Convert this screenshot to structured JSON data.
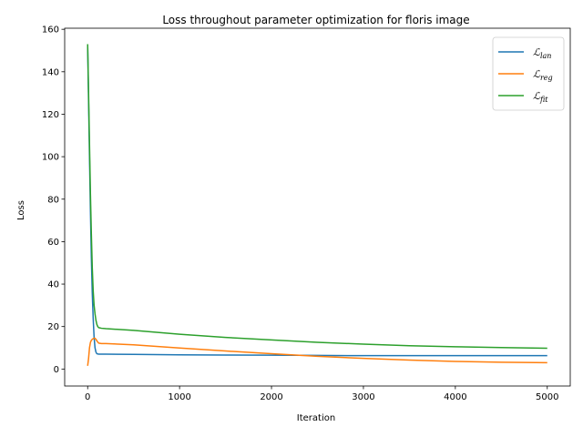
{
  "chart_data": {
    "type": "line",
    "title": "Loss throughout parameter optimization for floris image",
    "xlabel": "Iteration",
    "ylabel": "Loss",
    "xlim": [
      -250,
      5250
    ],
    "ylim": [
      -8,
      160.5
    ],
    "xticks": [
      0,
      1000,
      2000,
      3000,
      4000,
      5000
    ],
    "yticks": [
      0,
      20,
      40,
      60,
      80,
      100,
      120,
      140,
      160
    ],
    "grid": false,
    "legend_position": "top-right",
    "series": [
      {
        "name": "lan",
        "symbol": "ℒ",
        "color": "#1f77b4",
        "x": [
          0,
          10,
          20,
          30,
          40,
          50,
          60,
          70,
          80,
          90,
          100,
          120,
          150,
          200,
          500,
          1000,
          1500,
          2000,
          2500,
          3000,
          3500,
          4000,
          4500,
          5000
        ],
        "y": [
          152,
          126,
          100,
          75,
          53,
          36,
          24,
          15,
          10,
          8,
          7.2,
          7.0,
          7.0,
          7.0,
          6.9,
          6.7,
          6.6,
          6.5,
          6.4,
          6.3,
          6.3,
          6.3,
          6.3,
          6.3
        ]
      },
      {
        "name": "reg",
        "symbol": "ℒ",
        "color": "#ff7f0e",
        "x": [
          0,
          10,
          20,
          30,
          40,
          50,
          60,
          70,
          80,
          90,
          100,
          110,
          120,
          150,
          200,
          500,
          1000,
          1500,
          2000,
          2500,
          3000,
          3500,
          4000,
          4500,
          5000
        ],
        "y": [
          1.5,
          5,
          10,
          12.5,
          13.5,
          14,
          14.3,
          14.5,
          14.5,
          14,
          13.3,
          12.7,
          12.2,
          12.0,
          12.0,
          11.4,
          9.9,
          8.5,
          7.2,
          6.0,
          5.0,
          4.2,
          3.6,
          3.2,
          3.0
        ]
      },
      {
        "name": "fit",
        "symbol": "ℒ",
        "color": "#2ca02c",
        "x": [
          0,
          10,
          20,
          30,
          40,
          50,
          60,
          70,
          80,
          90,
          100,
          110,
          120,
          150,
          200,
          500,
          1000,
          1500,
          2000,
          2500,
          3000,
          3500,
          4000,
          4500,
          5000
        ],
        "y": [
          153,
          130,
          106,
          83,
          64,
          48,
          37,
          30,
          26,
          23,
          21,
          20,
          19.5,
          19.2,
          19.0,
          18.2,
          16.4,
          14.9,
          13.7,
          12.6,
          11.7,
          11.0,
          10.5,
          10.1,
          9.8
        ]
      }
    ]
  }
}
